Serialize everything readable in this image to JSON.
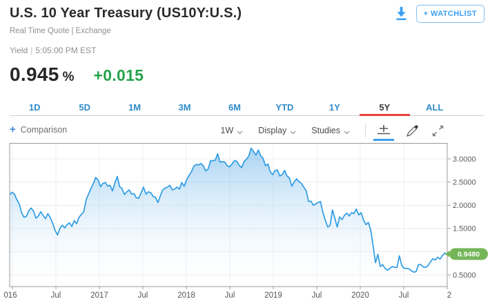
{
  "header": {
    "title": "U.S. 10 Year Treasury (US10Y:U.S.)",
    "subtitle": "Real Time Quote | Exchange",
    "download_icon": "download-arrow-icon",
    "watchlist_button": "+ WATCHLIST"
  },
  "quote": {
    "label": "Yield",
    "separator": "|",
    "timestamp": "5:05:00 PM EST",
    "value": "0.945",
    "unit": "%",
    "change": "+0.015",
    "change_color": "#23a24c"
  },
  "range_tabs": {
    "items": [
      "1D",
      "5D",
      "1M",
      "3M",
      "6M",
      "YTD",
      "1Y",
      "5Y",
      "ALL"
    ],
    "active": "5Y",
    "tab_color": "#2e8bc9",
    "active_underline_color": "#e8413c"
  },
  "toolbar": {
    "plus": "+",
    "comparison_label": "Comparison",
    "dropdowns": [
      "1W",
      "Display",
      "Studies"
    ],
    "dropdown_caret_icon": "chevron-down-icon",
    "icons": [
      "chart-style-icon",
      "draw-pencil-icon",
      "expand-icon"
    ],
    "selected_icon": "chart-style-icon"
  },
  "chart_data": {
    "type": "area",
    "title": "US10Y 5-year weekly yield history",
    "x_tick_labels": [
      "016",
      "Jul",
      "2017",
      "Jul",
      "2018",
      "Jul",
      "2019",
      "Jul",
      "2020",
      "Jul",
      "2"
    ],
    "y_tick_labels": [
      "0.5000",
      "1.0000",
      "1.5000",
      "2.0000",
      "2.5000",
      "3.0000"
    ],
    "y_ticks": [
      0.5,
      1.0,
      1.5,
      2.0,
      2.5,
      3.0
    ],
    "ylim": [
      0.25,
      3.35
    ],
    "grid": true,
    "legend": "none",
    "line_color": "#2e9ce4",
    "fill_top_color": "#57a9e8",
    "last_price_label": "0.9480",
    "last_price_value": 0.948,
    "badge_color": "#74b558",
    "values": [
      2.23,
      2.28,
      2.24,
      2.12,
      2.03,
      1.84,
      1.74,
      1.76,
      1.88,
      1.94,
      1.87,
      1.72,
      1.77,
      1.86,
      1.78,
      1.71,
      1.82,
      1.73,
      1.61,
      1.46,
      1.36,
      1.5,
      1.57,
      1.51,
      1.58,
      1.62,
      1.54,
      1.67,
      1.6,
      1.74,
      1.8,
      1.86,
      2.12,
      2.24,
      2.36,
      2.47,
      2.6,
      2.54,
      2.4,
      2.47,
      2.49,
      2.41,
      2.43,
      2.31,
      2.48,
      2.62,
      2.4,
      2.36,
      2.23,
      2.29,
      2.33,
      2.24,
      2.25,
      2.16,
      2.15,
      2.27,
      2.39,
      2.24,
      2.29,
      2.27,
      2.19,
      2.17,
      2.06,
      2.2,
      2.33,
      2.37,
      2.39,
      2.43,
      2.33,
      2.35,
      2.39,
      2.35,
      2.49,
      2.41,
      2.55,
      2.64,
      2.72,
      2.84,
      2.88,
      2.87,
      2.9,
      2.85,
      2.74,
      2.78,
      2.96,
      2.96,
      2.97,
      3.11,
      2.93,
      2.94,
      2.93,
      2.85,
      2.83,
      2.89,
      2.96,
      2.95,
      2.86,
      2.81,
      2.94,
      2.99,
      3.06,
      3.23,
      3.16,
      3.08,
      3.19,
      3.07,
      3.01,
      2.85,
      2.89,
      2.72,
      2.66,
      2.75,
      2.76,
      2.63,
      2.66,
      2.75,
      2.63,
      2.59,
      2.41,
      2.5,
      2.57,
      2.51,
      2.47,
      2.39,
      2.32,
      2.08,
      2.09,
      2.0,
      2.03,
      2.06,
      2.08,
      1.85,
      1.68,
      1.53,
      1.56,
      1.9,
      1.72,
      1.53,
      1.75,
      1.69,
      1.78,
      1.83,
      1.77,
      1.84,
      1.82,
      1.92,
      1.79,
      1.84,
      1.68,
      1.58,
      1.63,
      1.47,
      1.13,
      0.76,
      0.94,
      0.68,
      0.72,
      0.64,
      0.6,
      0.64,
      0.68,
      0.66,
      0.66,
      0.91,
      0.7,
      0.64,
      0.64,
      0.63,
      0.59,
      0.56,
      0.57,
      0.72,
      0.72,
      0.67,
      0.66,
      0.7,
      0.78,
      0.85,
      0.82,
      0.88,
      0.84,
      0.92,
      0.97,
      0.948
    ]
  }
}
